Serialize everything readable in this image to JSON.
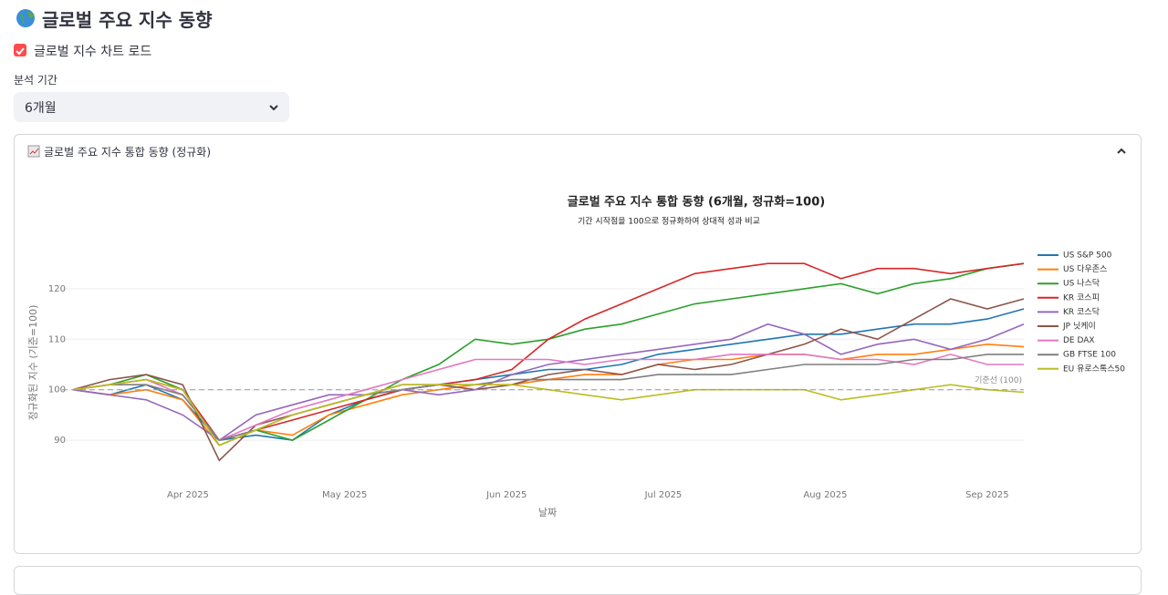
{
  "header": {
    "title": "글로벌 주요 지수 동향"
  },
  "checkbox": {
    "label": "글로벌 지수 차트 로드",
    "checked": true
  },
  "select": {
    "label": "분석 기간",
    "value": "6개월"
  },
  "expander": {
    "label": "글로벌 주요 지수 통합 동향 (정규화)"
  },
  "chart_data": {
    "type": "line",
    "title": "글로벌 주요 지수 통합 동향 (6개월, 정규화=100)",
    "subtitle": "기간 시작점을 100으로 정규화하여 상대적 성과 비교",
    "x_label": "날짜",
    "y_label": "정규화된 지수 (기준=100)",
    "x": [
      "2025-03-10",
      "2025-03-17",
      "2025-03-24",
      "2025-03-31",
      "2025-04-07",
      "2025-04-14",
      "2025-04-21",
      "2025-04-28",
      "2025-05-05",
      "2025-05-12",
      "2025-05-19",
      "2025-05-26",
      "2025-06-02",
      "2025-06-09",
      "2025-06-16",
      "2025-06-23",
      "2025-06-30",
      "2025-07-07",
      "2025-07-14",
      "2025-07-21",
      "2025-07-28",
      "2025-08-04",
      "2025-08-11",
      "2025-08-18",
      "2025-08-25",
      "2025-09-01",
      "2025-09-08"
    ],
    "xlim": [
      "2025-03-10",
      "2025-09-08"
    ],
    "xticks": [
      {
        "value": "2025-04-01",
        "label": "Apr 2025"
      },
      {
        "value": "2025-05-01",
        "label": "May 2025"
      },
      {
        "value": "2025-06-01",
        "label": "Jun 2025"
      },
      {
        "value": "2025-07-01",
        "label": "Jul 2025"
      },
      {
        "value": "2025-08-01",
        "label": "Aug 2025"
      },
      {
        "value": "2025-09-01",
        "label": "Sep 2025"
      }
    ],
    "ylim": [
      81,
      129
    ],
    "yticks": [
      90,
      100,
      110,
      120
    ],
    "grid": true,
    "legend": "right",
    "reference_line": {
      "value": 100,
      "label": "기준선 (100)"
    },
    "series": [
      {
        "name": "US S&P 500",
        "color": "#1f77b4",
        "values": [
          100,
          99,
          101,
          98,
          90,
          91,
          90,
          95,
          98,
          100,
          101,
          102,
          103,
          104,
          104,
          105,
          107,
          108,
          109,
          110,
          111,
          111,
          112,
          113,
          113,
          114,
          116
        ]
      },
      {
        "name": "US 다우존스",
        "color": "#ff7f0e",
        "values": [
          100,
          99,
          100,
          98,
          89,
          92,
          91,
          95,
          97,
          99,
          100,
          101,
          101,
          102,
          103,
          103,
          105,
          106,
          106,
          107,
          107,
          106,
          107,
          107,
          108,
          109,
          108.5
        ]
      },
      {
        "name": "US 나스닥",
        "color": "#2ca02c",
        "values": [
          100,
          101,
          103,
          100,
          89,
          92,
          90,
          94,
          98,
          102,
          105,
          110,
          109,
          110,
          112,
          113,
          115,
          117,
          118,
          119,
          120,
          121,
          119,
          121,
          122,
          124,
          125
        ]
      },
      {
        "name": "KR 코스피",
        "color": "#d62728",
        "values": [
          100,
          101,
          102,
          100,
          90,
          92,
          94,
          96,
          98,
          100,
          101,
          102,
          104,
          110,
          114,
          117,
          120,
          123,
          124,
          125,
          125,
          122,
          124,
          124,
          123,
          124,
          125
        ]
      },
      {
        "name": "KR 코스닥",
        "color": "#9467bd",
        "values": [
          100,
          99,
          98,
          95,
          90,
          95,
          97,
          99,
          99,
          100,
          99,
          100,
          103,
          105,
          106,
          107,
          108,
          109,
          110,
          113,
          111,
          107,
          109,
          110,
          108,
          110,
          113
        ]
      },
      {
        "name": "JP 닛케이",
        "color": "#8c564b",
        "values": [
          100,
          102,
          103,
          101,
          86,
          93,
          95,
          97,
          99,
          101,
          101,
          100,
          101,
          103,
          104,
          103,
          105,
          104,
          105,
          107,
          109,
          112,
          110,
          114,
          118,
          116,
          118
        ]
      },
      {
        "name": "DE DAX",
        "color": "#e377c2",
        "values": [
          100,
          101,
          102,
          99,
          90,
          93,
          96,
          98,
          100,
          102,
          104,
          106,
          106,
          106,
          105,
          106,
          106,
          106,
          107,
          107,
          107,
          106,
          106,
          105,
          107,
          105,
          105
        ]
      },
      {
        "name": "GB FTSE 100",
        "color": "#7f7f7f",
        "values": [
          100,
          101,
          101,
          99,
          90,
          92,
          95,
          97,
          99,
          100,
          101,
          101,
          102,
          102,
          102,
          102,
          103,
          103,
          103,
          104,
          105,
          105,
          105,
          106,
          106,
          107,
          107
        ]
      },
      {
        "name": "EU 유로스톡스50",
        "color": "#bcbd22",
        "values": [
          100,
          101,
          102,
          100,
          89,
          92,
          95,
          97,
          99,
          101,
          101,
          101,
          101,
          100,
          99,
          98,
          99,
          100,
          100,
          100,
          100,
          98,
          99,
          100,
          101,
          100,
          99.5
        ]
      }
    ]
  }
}
